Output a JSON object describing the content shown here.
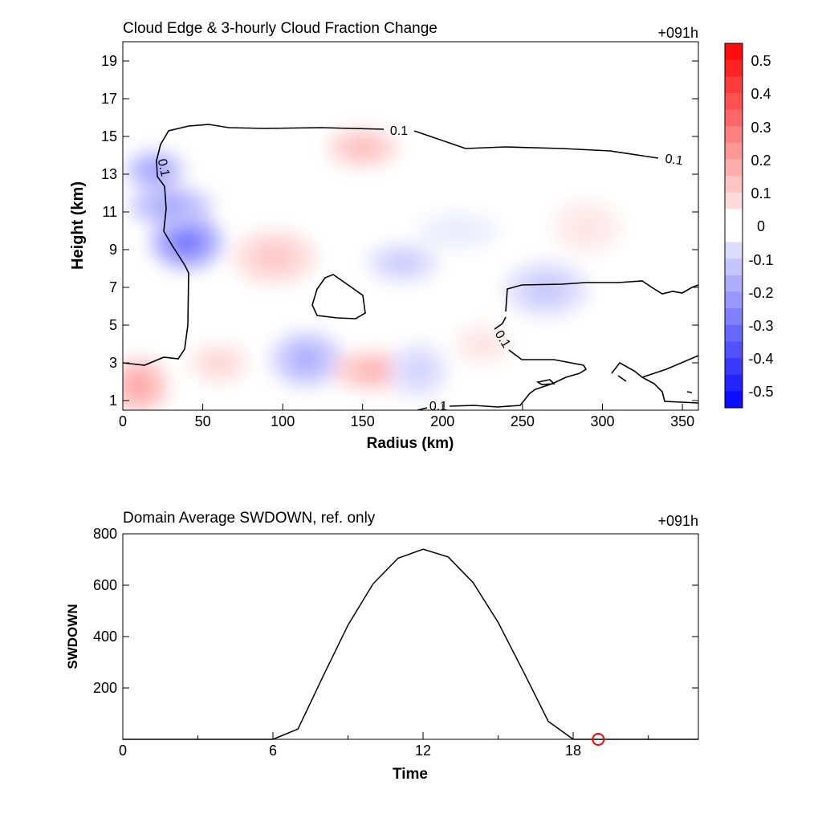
{
  "chart_data": [
    {
      "type": "heatmap",
      "title": "Cloud Edge & 3-hourly Cloud Fraction Change",
      "time_label": "+091h",
      "xlabel": "Radius (km)",
      "ylabel": "Height (km)",
      "xlim": [
        0,
        360
      ],
      "ylim": [
        0.5,
        20
      ],
      "x_ticks": [
        "0",
        "50",
        "100",
        "150",
        "200",
        "250",
        "300",
        "350"
      ],
      "y_ticks": [
        "1",
        "3",
        "5",
        "7",
        "9",
        "11",
        "13",
        "15",
        "17",
        "19"
      ],
      "colorbar": {
        "levels": [
          "0.5",
          "0.4",
          "0.3",
          "0.2",
          "0.1",
          "0",
          "-0.1",
          "-0.2",
          "-0.3",
          "-0.4",
          "-0.5"
        ],
        "min": -0.55,
        "max": 0.55,
        "colors": {
          "positive": "#ff0000",
          "zero": "#ffffff",
          "negative": "#0000ff"
        }
      },
      "contour_label": "0.1",
      "anomalies": [
        {
          "r": 20,
          "z": 13.2,
          "value": -0.22
        },
        {
          "r": 40,
          "z": 9.4,
          "value": -0.3
        },
        {
          "r": 30,
          "z": 11.3,
          "value": -0.2
        },
        {
          "r": 10,
          "z": 1.8,
          "value": 0.2
        },
        {
          "r": 150,
          "z": 14.4,
          "value": 0.15
        },
        {
          "r": 95,
          "z": 8.6,
          "value": 0.12
        },
        {
          "r": 60,
          "z": 3.0,
          "value": 0.1
        },
        {
          "r": 115,
          "z": 3.2,
          "value": -0.18
        },
        {
          "r": 157,
          "z": 2.6,
          "value": 0.17
        },
        {
          "r": 185,
          "z": 2.6,
          "value": -0.1
        },
        {
          "r": 175,
          "z": 8.3,
          "value": -0.12
        },
        {
          "r": 265,
          "z": 6.9,
          "value": -0.12
        },
        {
          "r": 225,
          "z": 4.0,
          "value": 0.07
        },
        {
          "r": 290,
          "z": 10.2,
          "value": 0.06
        },
        {
          "r": 210,
          "z": 10.0,
          "value": -0.05
        }
      ]
    },
    {
      "type": "line",
      "title": "Domain Average SWDOWN, ref. only",
      "time_label": "+091h",
      "xlabel": "Time",
      "ylabel": "SWDOWN",
      "xlim": [
        0,
        23
      ],
      "ylim": [
        0,
        800
      ],
      "x_ticks": [
        "0",
        "6",
        "12",
        "18"
      ],
      "y_ticks": [
        "200",
        "400",
        "600",
        "800"
      ],
      "series": [
        {
          "x": [
            0,
            1,
            2,
            3,
            4,
            5,
            6,
            7,
            8,
            9,
            10,
            11,
            12,
            13,
            14,
            15,
            16,
            17,
            18,
            19,
            20,
            21,
            22,
            23
          ],
          "values": [
            0,
            0,
            0,
            0,
            0,
            0,
            0,
            40,
            245,
            445,
            605,
            705,
            740,
            710,
            610,
            455,
            265,
            70,
            0,
            0,
            0,
            0,
            0,
            0
          ],
          "color": "#000000"
        }
      ],
      "marker": {
        "x": 19,
        "y": 0,
        "color": "#ff0000"
      }
    }
  ]
}
